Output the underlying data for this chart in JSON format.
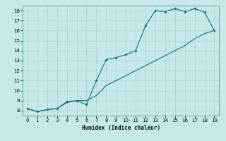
{
  "xlabel": "Humidex (Indice chaleur)",
  "ylabel": "",
  "background_color": "#c5e8e8",
  "grid_color": "#afd4d4",
  "line_color": "#1a7070",
  "xlim": [
    -0.5,
    19.5
  ],
  "ylim": [
    7.5,
    18.5
  ],
  "xticks": [
    0,
    1,
    2,
    3,
    4,
    5,
    6,
    7,
    8,
    9,
    10,
    11,
    12,
    13,
    14,
    15,
    16,
    17,
    18,
    19
  ],
  "yticks": [
    8,
    9,
    10,
    11,
    12,
    13,
    14,
    15,
    16,
    17,
    18
  ],
  "curve1_x": [
    0,
    1,
    2,
    3,
    4,
    5,
    6,
    7,
    8,
    9,
    10,
    11,
    12,
    13,
    14,
    15,
    16,
    17,
    18,
    19
  ],
  "curve1_y": [
    8.2,
    7.9,
    8.1,
    8.2,
    8.9,
    9.0,
    8.6,
    11.0,
    13.1,
    13.3,
    13.6,
    14.0,
    16.5,
    18.0,
    17.9,
    18.2,
    17.9,
    18.2,
    17.85,
    16.0
  ],
  "curve2_x": [
    0,
    1,
    2,
    3,
    4,
    5,
    6,
    7,
    8,
    9,
    10,
    11,
    12,
    13,
    14,
    15,
    16,
    17,
    18,
    19
  ],
  "curve2_y": [
    8.2,
    7.9,
    8.1,
    8.2,
    8.8,
    9.0,
    9.0,
    9.5,
    10.5,
    11.0,
    11.5,
    12.0,
    12.5,
    13.0,
    13.5,
    14.0,
    14.5,
    15.2,
    15.7,
    16.0
  ]
}
